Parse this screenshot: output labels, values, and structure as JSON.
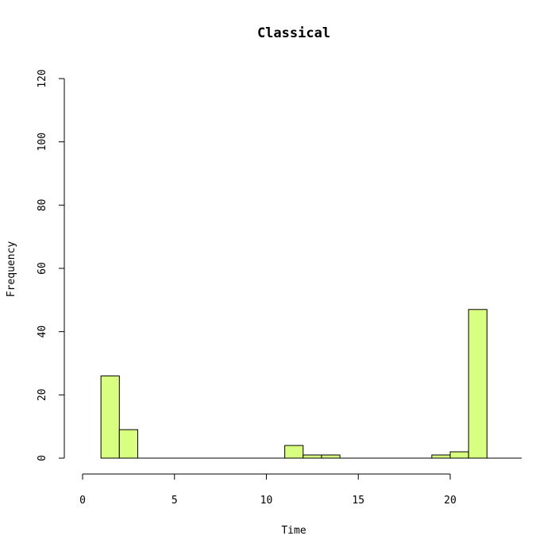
{
  "chart_data": {
    "type": "bar",
    "title": "Classical",
    "xlabel": "Time",
    "ylabel": "Frequency",
    "xlim": [
      0,
      24
    ],
    "ylim": [
      0,
      120
    ],
    "xticks": [
      0,
      5,
      10,
      15,
      20
    ],
    "yticks": [
      0,
      20,
      40,
      60,
      80,
      100,
      120
    ],
    "bin_width": 1,
    "bins": [
      {
        "start": 1,
        "end": 2,
        "value": 26
      },
      {
        "start": 2,
        "end": 3,
        "value": 9
      },
      {
        "start": 3,
        "end": 4,
        "value": 0
      },
      {
        "start": 4,
        "end": 5,
        "value": 0
      },
      {
        "start": 5,
        "end": 6,
        "value": 0
      },
      {
        "start": 6,
        "end": 7,
        "value": 0
      },
      {
        "start": 7,
        "end": 8,
        "value": 0
      },
      {
        "start": 8,
        "end": 9,
        "value": 0
      },
      {
        "start": 9,
        "end": 10,
        "value": 0
      },
      {
        "start": 10,
        "end": 11,
        "value": 0
      },
      {
        "start": 11,
        "end": 12,
        "value": 4
      },
      {
        "start": 12,
        "end": 13,
        "value": 1
      },
      {
        "start": 13,
        "end": 14,
        "value": 1
      },
      {
        "start": 14,
        "end": 15,
        "value": 0
      },
      {
        "start": 15,
        "end": 16,
        "value": 0
      },
      {
        "start": 16,
        "end": 17,
        "value": 0
      },
      {
        "start": 17,
        "end": 18,
        "value": 0
      },
      {
        "start": 18,
        "end": 19,
        "value": 0
      },
      {
        "start": 19,
        "end": 20,
        "value": 1
      },
      {
        "start": 20,
        "end": 21,
        "value": 2
      },
      {
        "start": 21,
        "end": 22,
        "value": 47
      }
    ],
    "bar_color": "#d9ff80",
    "grid": false
  }
}
